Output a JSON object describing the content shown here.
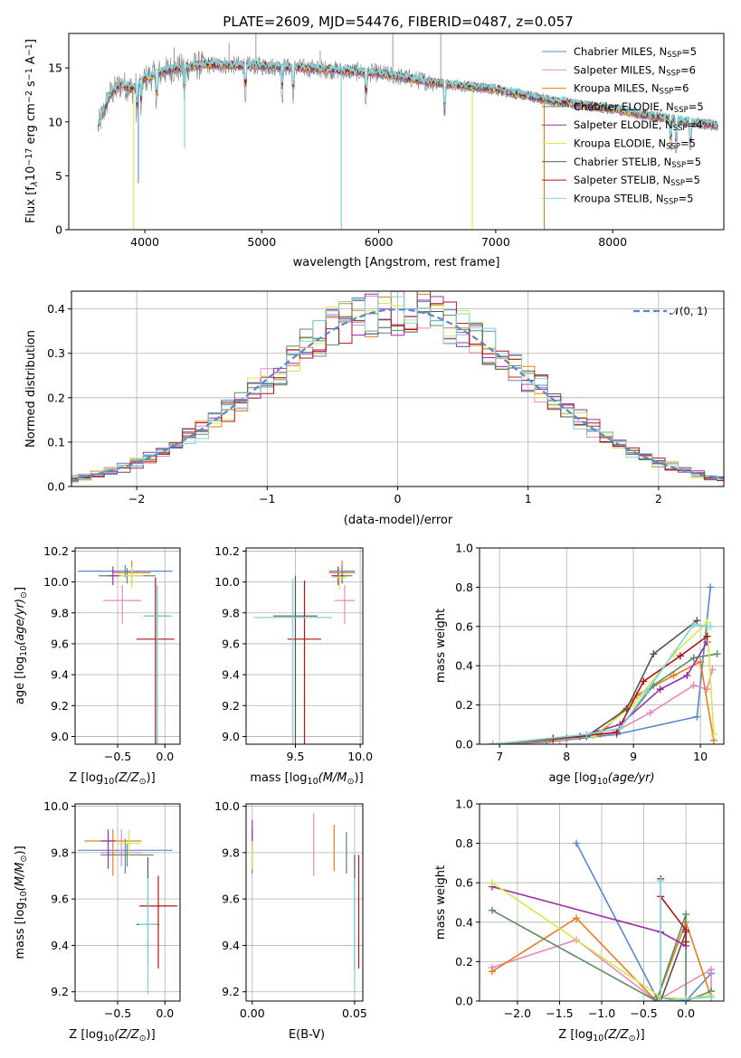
{
  "title": "PLATE=2609, MJD=54476, FIBERID=0487, z=0.057",
  "colors": {
    "c1": "#5b86cf",
    "c2": "#e88abf",
    "c3": "#e87d1c",
    "c4": "#5e8b63",
    "c5": "#9a2ca8",
    "c6": "#d6e84a",
    "c7": "#555555",
    "c8": "#b01515",
    "c9": "#7fd3db",
    "data": "#808080"
  },
  "chart_data": [
    {
      "id": "spectrum",
      "type": "line",
      "title": "PLATE=2609, MJD=54476, FIBERID=0487, z=0.057",
      "xlabel": "wavelength [Angstrom, rest frame]",
      "ylabel": "Flux [f",
      "xlim": [
        3350,
        8950
      ],
      "ylim": [
        0,
        18.2
      ],
      "xticks": [
        4000,
        5000,
        6000,
        7000,
        8000
      ],
      "yticks": [
        0,
        5,
        10,
        15
      ],
      "grid": false,
      "legend_position": "top-right",
      "series": [
        {
          "name": "Chabrier MILES, N",
          "sub": "SSP",
          "tail": "=5"
        },
        {
          "name": "Salpeter MILES, N",
          "sub": "SSP",
          "tail": "=6"
        },
        {
          "name": "Kroupa MILES, N",
          "sub": "SSP",
          "tail": "=6"
        },
        {
          "name": "Chabrier ELODIE, N",
          "sub": "SSP",
          "tail": "=5"
        },
        {
          "name": "Salpeter ELODIE, N",
          "sub": "SSP",
          "tail": "=4"
        },
        {
          "name": "Kroupa ELODIE, N",
          "sub": "SSP",
          "tail": "=5"
        },
        {
          "name": "Chabrier STELIB, N",
          "sub": "SSP",
          "tail": "=5"
        },
        {
          "name": "Salpeter STELIB, N",
          "sub": "SSP",
          "tail": "=5"
        },
        {
          "name": "Kroupa STELIB, N",
          "sub": "SSP",
          "tail": "=5"
        }
      ],
      "continuum": [
        [
          3600,
          9.5
        ],
        [
          3700,
          12.5
        ],
        [
          3800,
          13.5
        ],
        [
          3900,
          13.0
        ],
        [
          4000,
          14.0
        ],
        [
          4200,
          14.8
        ],
        [
          4500,
          15.3
        ],
        [
          5000,
          15.2
        ],
        [
          5500,
          14.9
        ],
        [
          6000,
          14.5
        ],
        [
          6500,
          13.6
        ],
        [
          7000,
          13.0
        ],
        [
          7500,
          11.9
        ],
        [
          8000,
          11.2
        ],
        [
          8400,
          10.4
        ],
        [
          8900,
          9.6
        ]
      ]
    },
    {
      "id": "residuals",
      "type": "histogram",
      "xlabel": "(data-model)/error",
      "ylabel": "Normed distribution",
      "xlim": [
        -2.5,
        2.5
      ],
      "ylim": [
        0,
        0.44
      ],
      "xticks": [
        -2,
        -1,
        0,
        1,
        2
      ],
      "yticks": [
        0.0,
        0.1,
        0.2,
        0.3,
        0.4
      ],
      "grid": true,
      "bin_width": 0.1,
      "reference_curve": "N(0,1)",
      "legend_position": "top-right"
    },
    {
      "id": "age_vs_z",
      "type": "scatter",
      "xlabel": "Z [log",
      "ylabel": "age  [log",
      "xlim": [
        -0.95,
        0.16
      ],
      "ylim": [
        8.95,
        10.22
      ],
      "xticks": [
        -0.5,
        0.0
      ],
      "yticks": [
        9.0,
        9.2,
        9.4,
        9.6,
        9.8,
        10.0,
        10.2
      ],
      "points": [
        {
          "x": -0.42,
          "y": 10.07,
          "xerr": 0.5,
          "yerr": [
            0.04,
            0.04
          ]
        },
        {
          "x": -0.45,
          "y": 9.88,
          "xerr": 0.2,
          "yerr": [
            0.15,
            0.1
          ]
        },
        {
          "x": -0.35,
          "y": 10.06,
          "xerr": 0.2,
          "yerr": [
            0.07,
            0.08
          ]
        },
        {
          "x": -0.4,
          "y": 10.04,
          "xerr": 0.3,
          "yerr": [
            0.05,
            0.05
          ]
        },
        {
          "x": -0.55,
          "y": 10.04,
          "xerr": 0.05,
          "yerr": [
            0.06,
            0.06
          ]
        },
        {
          "x": -0.35,
          "y": 10.04,
          "xerr": 0.12,
          "yerr": [
            0.08,
            0.06
          ]
        },
        {
          "x": -0.08,
          "y": 9.78,
          "xerr": 0.14,
          "yerr": [
            0.85,
            0.2
          ]
        },
        {
          "x": -0.1,
          "y": 9.63,
          "xerr": 0.2,
          "yerr": [
            0.7,
            0.4
          ]
        },
        {
          "x": -0.08,
          "y": 9.78,
          "xerr": 0.15,
          "yerr": [
            0.85,
            0.2
          ]
        }
      ]
    },
    {
      "id": "age_vs_mass",
      "type": "scatter",
      "xlabel": "mass [log",
      "ylabel": "",
      "xlim": [
        9.12,
        10.02
      ],
      "ylim": [
        8.95,
        10.22
      ],
      "xticks": [
        9.5,
        10.0
      ],
      "yticks": [
        9.0,
        9.2,
        9.4,
        9.6,
        9.8,
        10.0,
        10.2
      ],
      "points": [
        {
          "x": 9.86,
          "y": 10.07,
          "xerr": 0.1,
          "yerr": [
            0.04,
            0.04
          ]
        },
        {
          "x": 9.88,
          "y": 9.88,
          "xerr": 0.08,
          "yerr": [
            0.15,
            0.1
          ]
        },
        {
          "x": 9.86,
          "y": 10.06,
          "xerr": 0.1,
          "yerr": [
            0.07,
            0.08
          ]
        },
        {
          "x": 9.86,
          "y": 10.04,
          "xerr": 0.08,
          "yerr": [
            0.05,
            0.05
          ]
        },
        {
          "x": 9.83,
          "y": 10.04,
          "xerr": 0.05,
          "yerr": [
            0.06,
            0.06
          ]
        },
        {
          "x": 9.84,
          "y": 10.03,
          "xerr": 0.05,
          "yerr": [
            0.08,
            0.06
          ]
        },
        {
          "x": 9.5,
          "y": 9.78,
          "xerr": 0.17,
          "yerr": [
            0.85,
            0.26
          ]
        },
        {
          "x": 9.57,
          "y": 9.63,
          "xerr": 0.13,
          "yerr": [
            0.7,
            0.38
          ]
        },
        {
          "x": 9.48,
          "y": 9.77,
          "xerr": 0.3,
          "yerr": [
            0.85,
            0.25
          ]
        }
      ]
    },
    {
      "id": "mass_weight_vs_age",
      "type": "line",
      "xlabel": "age  [log",
      "ylabel": "mass weight",
      "xlim": [
        6.7,
        10.35
      ],
      "ylim": [
        0,
        1.0
      ],
      "xticks": [
        7,
        8,
        9,
        10
      ],
      "yticks": [
        0.0,
        0.2,
        0.4,
        0.6,
        0.8,
        1.0
      ],
      "grid": true,
      "series": [
        {
          "x": [
            6.9,
            7.7,
            8.75,
            9.95,
            10.15
          ],
          "y": [
            0.0,
            0.01,
            0.05,
            0.14,
            0.8
          ]
        },
        {
          "x": [
            6.9,
            7.9,
            8.7,
            9.25,
            9.9,
            10.1,
            10.18
          ],
          "y": [
            0.0,
            0.02,
            0.06,
            0.16,
            0.3,
            0.28,
            0.38
          ]
        },
        {
          "x": [
            6.9,
            7.8,
            8.5,
            9.05,
            9.6,
            10.0,
            10.2
          ],
          "y": [
            0.0,
            0.02,
            0.05,
            0.25,
            0.35,
            0.42,
            0.02
          ]
        },
        {
          "x": [
            6.9,
            8.0,
            8.75,
            9.3,
            9.9,
            10.25
          ],
          "y": [
            0.0,
            0.03,
            0.06,
            0.3,
            0.44,
            0.46
          ]
        },
        {
          "x": [
            6.9,
            8.2,
            8.8,
            9.4,
            9.8,
            10.1
          ],
          "y": [
            0.0,
            0.04,
            0.1,
            0.28,
            0.35,
            0.52
          ]
        },
        {
          "x": [
            6.9,
            8.4,
            9.0,
            9.6,
            10.1,
            10.2
          ],
          "y": [
            0.0,
            0.04,
            0.2,
            0.46,
            0.62,
            0.05
          ]
        },
        {
          "x": [
            6.9,
            8.3,
            8.9,
            9.3,
            9.95
          ],
          "y": [
            0.0,
            0.04,
            0.18,
            0.46,
            0.63
          ]
        },
        {
          "x": [
            6.9,
            7.8,
            8.75,
            9.15,
            9.7,
            10.1
          ],
          "y": [
            0.0,
            0.03,
            0.06,
            0.32,
            0.45,
            0.55
          ]
        },
        {
          "x": [
            6.9,
            8.3,
            8.8,
            9.2,
            9.9,
            10.15
          ],
          "y": [
            0.0,
            0.05,
            0.08,
            0.27,
            0.61,
            0.6
          ]
        }
      ]
    },
    {
      "id": "mass_vs_z",
      "type": "scatter",
      "xlabel": "Z [log",
      "ylabel": "mass [log",
      "xlim": [
        -0.95,
        0.16
      ],
      "ylim": [
        9.16,
        10.01
      ],
      "xticks": [
        -0.5,
        0.0
      ],
      "yticks": [
        9.2,
        9.4,
        9.6,
        9.8,
        10.0
      ],
      "points": [
        {
          "x": -0.42,
          "y": 9.81,
          "xerr": 0.5,
          "yerr": [
            0.1,
            0.05
          ]
        },
        {
          "x": -0.46,
          "y": 9.8,
          "xerr": 0.22,
          "yerr": [
            0.06,
            0.1
          ]
        },
        {
          "x": -0.55,
          "y": 9.85,
          "xerr": 0.3,
          "yerr": [
            0.15,
            0.05
          ]
        },
        {
          "x": -0.4,
          "y": 9.79,
          "xerr": 0.28,
          "yerr": [
            0.05,
            0.05
          ]
        },
        {
          "x": -0.6,
          "y": 9.85,
          "xerr": 0.08,
          "yerr": [
            0.12,
            0.05
          ]
        },
        {
          "x": -0.38,
          "y": 9.84,
          "xerr": 0.12,
          "yerr": [
            0.05,
            0.06
          ]
        },
        {
          "x": -0.18,
          "y": 9.49,
          "xerr": 0.12,
          "yerr": [
            0.17,
            0.29
          ]
        },
        {
          "x": -0.07,
          "y": 9.57,
          "xerr": 0.2,
          "yerr": [
            0.27,
            0.13
          ]
        },
        {
          "x": -0.18,
          "y": 9.49,
          "xerr": 0.1,
          "yerr": [
            0.3,
            0.2
          ]
        }
      ]
    },
    {
      "id": "mass_vs_ebv",
      "type": "scatter",
      "xlabel": "E(B-V)",
      "ylabel": "",
      "xlim": [
        -0.003,
        0.054
      ],
      "ylim": [
        9.16,
        10.01
      ],
      "xticks": [
        0.0,
        0.05
      ],
      "yticks": [
        9.2,
        9.4,
        9.6,
        9.8,
        10.0
      ],
      "points": [
        {
          "x": 0.0,
          "y": 9.83,
          "yerr": [
            0.12,
            0.07
          ]
        },
        {
          "x": 0.03,
          "y": 9.8,
          "yerr": [
            0.1,
            0.17
          ]
        },
        {
          "x": 0.04,
          "y": 9.82,
          "yerr": [
            0.1,
            0.1
          ]
        },
        {
          "x": 0.046,
          "y": 9.79,
          "yerr": [
            0.08,
            0.1
          ]
        },
        {
          "x": 0.0,
          "y": 9.89,
          "yerr": [
            0.08,
            0.05
          ]
        },
        {
          "x": 0.0,
          "y": 9.8,
          "yerr": [
            0.07,
            0.05
          ]
        },
        {
          "x": 0.05,
          "y": 9.49,
          "yerr": [
            0.2,
            0.3
          ]
        },
        {
          "x": 0.052,
          "y": 9.57,
          "yerr": [
            0.27,
            0.22
          ]
        },
        {
          "x": 0.05,
          "y": 9.49,
          "yerr": [
            0.3,
            0.2
          ]
        }
      ]
    },
    {
      "id": "mass_weight_vs_z",
      "type": "line",
      "xlabel": "Z [log",
      "ylabel": "mass weight",
      "xlim": [
        -2.45,
        0.45
      ],
      "ylim": [
        0,
        1.0
      ],
      "xticks": [
        -2.0,
        -1.5,
        -1.0,
        -0.5,
        0.0
      ],
      "yticks": [
        0.0,
        0.2,
        0.4,
        0.6,
        0.8,
        1.0
      ],
      "grid": true,
      "series": [
        {
          "x": [
            -1.3,
            -0.35,
            0.0,
            0.3
          ],
          "y": [
            0.8,
            0.02,
            0.0,
            0.14
          ]
        },
        {
          "x": [
            -2.3,
            -1.3,
            -0.35,
            0.3,
            0.3
          ],
          "y": [
            0.17,
            0.31,
            0.0,
            0.16,
            0.05
          ]
        },
        {
          "x": [
            -2.3,
            -1.3,
            -0.35,
            0.0,
            0.3
          ],
          "y": [
            0.15,
            0.42,
            0.0,
            0.4,
            0.02
          ]
        },
        {
          "x": [
            -2.3,
            -0.35,
            0.0,
            0.0,
            0.3
          ],
          "y": [
            0.46,
            0.0,
            0.44,
            0.0,
            0.05
          ]
        },
        {
          "x": [
            -2.3,
            -0.3,
            0.0
          ],
          "y": [
            0.58,
            0.35,
            0.28
          ]
        },
        {
          "x": [
            -2.3,
            -0.3,
            0.0,
            0.3
          ],
          "y": [
            0.6,
            0.02,
            0.01,
            0.03
          ]
        },
        {
          "x": [
            -0.3,
            -0.3,
            0.0
          ],
          "y": [
            0.62,
            0.0,
            0.35
          ]
        },
        {
          "x": [
            -0.3,
            0.0,
            0.0
          ],
          "y": [
            0.53,
            0.36,
            0.3
          ]
        },
        {
          "x": [
            -0.3,
            -0.3,
            0.0,
            0.3
          ],
          "y": [
            0.61,
            0.0,
            0.01,
            0.02
          ]
        }
      ]
    }
  ],
  "labels": {
    "spec_ylabel_tail": "10",
    "msun": "M",
    "zsun": "Z",
    "agelog": "(age/yr)",
    "norm_legend": "𝒩(0, 1)"
  }
}
